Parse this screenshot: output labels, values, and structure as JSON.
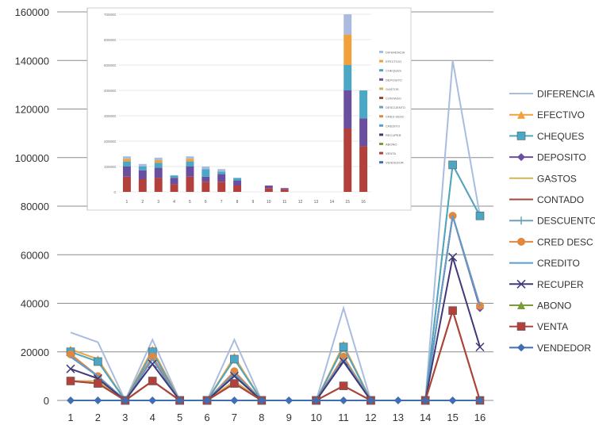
{
  "chart_data": [
    {
      "type": "line",
      "x": [
        1,
        2,
        3,
        4,
        5,
        6,
        7,
        8,
        9,
        10,
        11,
        12,
        13,
        14,
        15,
        16
      ],
      "ylim": [
        0,
        160000
      ],
      "yticks": [
        0,
        20000,
        40000,
        60000,
        80000,
        100000,
        120000,
        140000,
        160000
      ],
      "grid": true,
      "legend_position": "right",
      "series": [
        {
          "name": "DIFERENCIA",
          "color": "#a9bce0",
          "marker": "none",
          "values": [
            28000,
            24000,
            0,
            25000,
            0,
            0,
            25000,
            0,
            null,
            0,
            38000,
            0,
            null,
            0,
            140000,
            76000
          ]
        },
        {
          "name": "EFECTIVO",
          "color": "#f0a13a",
          "marker": "triangle",
          "values": [
            21000,
            17000,
            0,
            21000,
            0,
            0,
            18000,
            0,
            null,
            0,
            23000,
            0,
            null,
            0,
            97000,
            76000
          ]
        },
        {
          "name": "CHEQUES",
          "color": "#4aa7c5",
          "marker": "square",
          "values": [
            20000,
            16000,
            0,
            20000,
            0,
            0,
            17000,
            0,
            null,
            0,
            22000,
            0,
            null,
            0,
            97000,
            76000
          ]
        },
        {
          "name": "DEPOSITO",
          "color": "#6a4fa0",
          "marker": "diamond",
          "values": [
            19000,
            10000,
            0,
            18000,
            0,
            0,
            12000,
            0,
            null,
            0,
            18000,
            0,
            null,
            0,
            76000,
            38000
          ]
        },
        {
          "name": "GASTOS",
          "color": "#d6b35a",
          "marker": "none",
          "values": [
            8000,
            8000,
            0,
            8000,
            0,
            0,
            8000,
            0,
            null,
            0,
            6000,
            0,
            null,
            0,
            37000,
            0
          ]
        },
        {
          "name": "CONTADO",
          "color": "#9c4a3a",
          "marker": "none",
          "values": [
            18000,
            10000,
            0,
            17000,
            0,
            0,
            11000,
            0,
            null,
            0,
            17000,
            0,
            null,
            0,
            76000,
            39000
          ]
        },
        {
          "name": "DESCUENTO",
          "color": "#6ea0b8",
          "marker": "plus",
          "values": [
            8000,
            7000,
            0,
            8000,
            0,
            0,
            7000,
            0,
            null,
            0,
            6000,
            0,
            null,
            0,
            37000,
            0
          ]
        },
        {
          "name": "CRED DESC",
          "color": "#e08840",
          "marker": "circle",
          "values": [
            19000,
            10000,
            0,
            18000,
            0,
            0,
            12000,
            0,
            null,
            0,
            18000,
            0,
            null,
            0,
            76000,
            39000
          ]
        },
        {
          "name": "CREDITO",
          "color": "#5d9ccf",
          "marker": "none",
          "values": [
            18000,
            10000,
            0,
            17000,
            0,
            0,
            11000,
            0,
            null,
            0,
            17000,
            0,
            null,
            0,
            76000,
            39000
          ]
        },
        {
          "name": "RECUPER",
          "color": "#3e3a7a",
          "marker": "x",
          "values": [
            13000,
            9000,
            0,
            15000,
            0,
            0,
            10000,
            0,
            null,
            0,
            16000,
            0,
            null,
            0,
            59000,
            22000
          ]
        },
        {
          "name": "ABONO",
          "color": "#7b9a3a",
          "marker": "triangle",
          "values": [
            8000,
            7000,
            0,
            8000,
            0,
            0,
            7000,
            0,
            null,
            0,
            6000,
            0,
            null,
            0,
            37000,
            0
          ]
        },
        {
          "name": "VENTA",
          "color": "#b3403a",
          "marker": "square",
          "values": [
            8000,
            7000,
            0,
            8000,
            0,
            0,
            7000,
            0,
            null,
            0,
            6000,
            0,
            null,
            0,
            37000,
            0
          ]
        },
        {
          "name": "VENDEDOR",
          "color": "#3f6fb3",
          "marker": "diamond",
          "values": [
            0,
            0,
            0,
            0,
            0,
            0,
            0,
            0,
            0,
            0,
            0,
            0,
            0,
            0,
            0,
            0
          ]
        }
      ]
    },
    {
      "type": "bar",
      "stacked": true,
      "categories": [
        1,
        2,
        3,
        4,
        5,
        6,
        7,
        8,
        9,
        10,
        11,
        12,
        13,
        14,
        15,
        16
      ],
      "ylim": [
        0,
        700000
      ],
      "yticks": [
        0,
        100000,
        200000,
        300000,
        400000,
        500000,
        600000,
        700000
      ],
      "legend_position": "right",
      "legend_entries": [
        "DIFERENCIA",
        "EFECTIVO",
        "CHEQUES",
        "DEPOSITO",
        "GASTOS",
        "CONTADO",
        "DESCUENTO",
        "CRED DESC",
        "CREDITO",
        "RECUPER",
        "ABONO",
        "VENTA",
        "VENDEDOR"
      ],
      "series": [
        {
          "name": "VENTA",
          "color": "#b3403a",
          "values": [
            60000,
            50000,
            55000,
            30000,
            60000,
            40000,
            40000,
            25000,
            0,
            15000,
            10000,
            0,
            0,
            0,
            250000,
            180000
          ]
        },
        {
          "name": "DEPOSITO",
          "color": "#6a4fa0",
          "values": [
            40000,
            35000,
            40000,
            25000,
            40000,
            20000,
            30000,
            20000,
            0,
            10000,
            5000,
            0,
            0,
            0,
            150000,
            110000
          ]
        },
        {
          "name": "CHEQUES",
          "color": "#4aa7c5",
          "values": [
            20000,
            15000,
            20000,
            10000,
            20000,
            30000,
            10000,
            10000,
            0,
            0,
            0,
            0,
            0,
            0,
            100000,
            110000
          ]
        },
        {
          "name": "EFECTIVO",
          "color": "#f0a13a",
          "values": [
            10000,
            0,
            10000,
            0,
            10000,
            0,
            0,
            0,
            0,
            0,
            0,
            0,
            0,
            0,
            120000,
            0
          ]
        },
        {
          "name": "DIFERENCIA",
          "color": "#a9bce0",
          "values": [
            10000,
            10000,
            10000,
            0,
            10000,
            10000,
            10000,
            0,
            0,
            0,
            0,
            0,
            0,
            0,
            80000,
            0
          ]
        }
      ]
    }
  ]
}
